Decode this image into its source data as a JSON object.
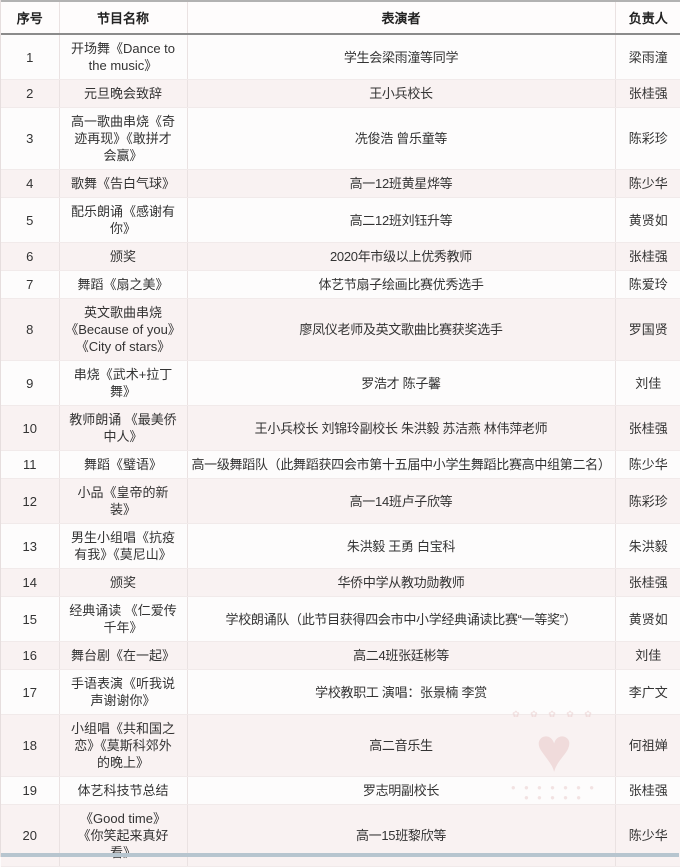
{
  "page": {
    "bg_color": "#fdfbfb",
    "stripe_color": "#f9f2f2",
    "header_rule_color": "#8b8b8b",
    "bottom_frame_color": "#b7c5cf"
  },
  "table": {
    "columns": [
      "序号",
      "节目名称",
      "表演者",
      "负责人"
    ],
    "rows": [
      {
        "no": "1",
        "name": "开场舞《Dance to\nthe music》",
        "performers": "学生会梁雨潼等同学",
        "manager": "梁雨潼"
      },
      {
        "no": "2",
        "name": "元旦晚会致辞",
        "performers": "王小兵校长",
        "manager": "张桂强"
      },
      {
        "no": "3",
        "name": "高一歌曲串烧《奇\n迹再现》《敢拼才\n会赢》",
        "performers": "冼俊浩 曾乐童等",
        "manager": "陈彩珍"
      },
      {
        "no": "4",
        "name": "歌舞《告白气球》",
        "performers": "高一12班黄星烨等",
        "manager": "陈少华"
      },
      {
        "no": "5",
        "name": "配乐朗诵《感谢有\n你》",
        "performers": "高二12班刘钰升等",
        "manager": "黄贤如"
      },
      {
        "no": "6",
        "name": "颁奖",
        "performers": "2020年市级以上优秀教师",
        "manager": "张桂强"
      },
      {
        "no": "7",
        "name": "舞蹈《扇之美》",
        "performers": "体艺节扇子绘画比赛优秀选手",
        "manager": "陈爱玲"
      },
      {
        "no": "8",
        "name": "英文歌曲串烧\n《Because of you》\n《City of stars》",
        "performers": "廖凤仪老师及英文歌曲比赛获奖选手",
        "manager": "罗国贤"
      },
      {
        "no": "9",
        "name": "串烧《武术+拉丁\n舞》",
        "performers": "罗浩才 陈子馨",
        "manager": "刘佳"
      },
      {
        "no": "10",
        "name": "教师朗诵 《最美侨\n中人》",
        "performers": "王小兵校长 刘锦玲副校长 朱洪毅 苏洁燕 林伟萍老师",
        "manager": "张桂强"
      },
      {
        "no": "11",
        "name": "舞蹈《璧语》",
        "performers": "高一级舞蹈队（此舞蹈获四会市第十五届中小学生舞蹈比赛高中组第二名）",
        "manager": "陈少华"
      },
      {
        "no": "12",
        "name": "小品《皇帝的新\n装》",
        "performers": "高一14班卢子欣等",
        "manager": "陈彩珍"
      },
      {
        "no": "13",
        "name": "男生小组唱《抗疫\n有我》《莫尼山》",
        "performers": "朱洪毅 王勇 白宝科",
        "manager": "朱洪毅"
      },
      {
        "no": "14",
        "name": "颁奖",
        "performers": "华侨中学从教功勋教师",
        "manager": "张桂强"
      },
      {
        "no": "15",
        "name": "经典诵读 《仁爱传\n千年》",
        "performers": "学校朗诵队（此节目获得四会市中小学经典诵读比赛“一等奖”）",
        "manager": "黄贤如"
      },
      {
        "no": "16",
        "name": "舞台剧《在一起》",
        "performers": "高二4班张廷彬等",
        "manager": "刘佳"
      },
      {
        "no": "17",
        "name": "手语表演《听我说\n声谢谢你》",
        "performers": "学校教职工 演唱：张景楠 李赏",
        "manager": "李广文"
      },
      {
        "no": "18",
        "name": "小组唱《共和国之\n恋》《莫斯科郊外\n的晚上》",
        "performers": "高二音乐生",
        "manager": "何祖婵"
      },
      {
        "no": "19",
        "name": "体艺科技节总结",
        "performers": "罗志明副校长",
        "manager": "张桂强"
      },
      {
        "no": "20",
        "name": "《Good time》\n《你笑起来真好\n看》",
        "performers": "高一15班黎欣等",
        "manager": "陈少华"
      }
    ]
  },
  "watermark": {
    "icon": "heart-watermark",
    "glyph": "♥",
    "arc_top": "✿ ✿ ✿ ✿ ✿",
    "dots_row1": "● ● ● ● ● ● ●",
    "dots_row2": "● ● ● ● ●",
    "color": "#d9a3a3"
  }
}
